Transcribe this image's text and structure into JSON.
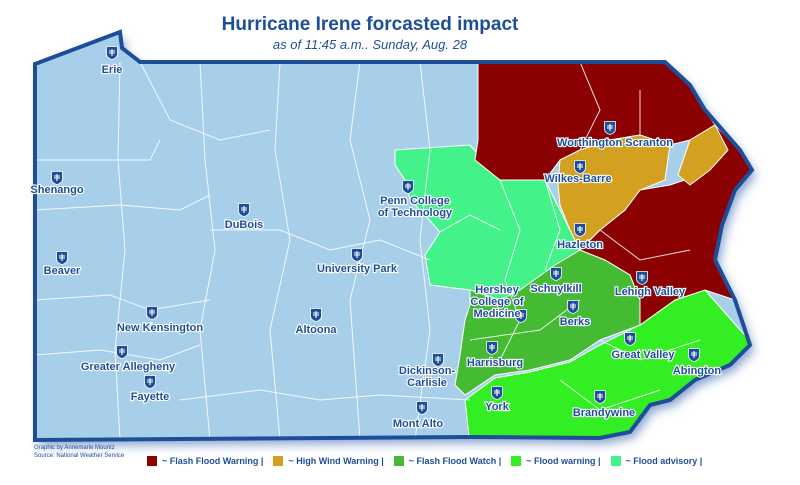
{
  "title": "Hurricane Irene forcasted impact",
  "subtitle": "as of 11:45 a.m.. Sunday, Aug. 28",
  "credit": {
    "line1": "Graphic by Annemarie Mountz",
    "line2": "Source: National Weather Service"
  },
  "legend": [
    {
      "label": "~ Flash Flood Warning  |",
      "color": "#8b0000"
    },
    {
      "label": "~ High Wind Warning  |",
      "color": "#d4a020"
    },
    {
      "label": "~ Flash Flood Watch  |",
      "color": "#44bb33"
    },
    {
      "label": "~ Flood warning  |",
      "color": "#33ee22"
    },
    {
      "label": "~ Flood advisory  |",
      "color": "#44f28a"
    }
  ],
  "colors": {
    "base": "#a8cfea",
    "outline": "#1f4e99",
    "county_line": "#ffffff",
    "label": "#1f4e99"
  },
  "campuses": [
    {
      "name": "Erie"
    },
    {
      "name": "Shenango"
    },
    {
      "name": "Beaver"
    },
    {
      "name": "DuBois"
    },
    {
      "name": "New Kensington"
    },
    {
      "name": "Greater Allegheny"
    },
    {
      "name": "Fayette"
    },
    {
      "name": "Altoona"
    },
    {
      "name": "University Park"
    },
    {
      "name": "Penn College\nof Technology"
    },
    {
      "name": "Worthington Scranton"
    },
    {
      "name": "Wilkes-Barre"
    },
    {
      "name": "Hazleton"
    },
    {
      "name": "Schuylkill"
    },
    {
      "name": "Lehigh Valley"
    },
    {
      "name": "Hershey\nCollege of\nMedicine"
    },
    {
      "name": "Berks"
    },
    {
      "name": "Harrisburg"
    },
    {
      "name": "Great Valley"
    },
    {
      "name": "Abington"
    },
    {
      "name": "Dickinson-\nCarlisle"
    },
    {
      "name": "York"
    },
    {
      "name": "Brandywine"
    },
    {
      "name": "Mont Alto"
    }
  ]
}
